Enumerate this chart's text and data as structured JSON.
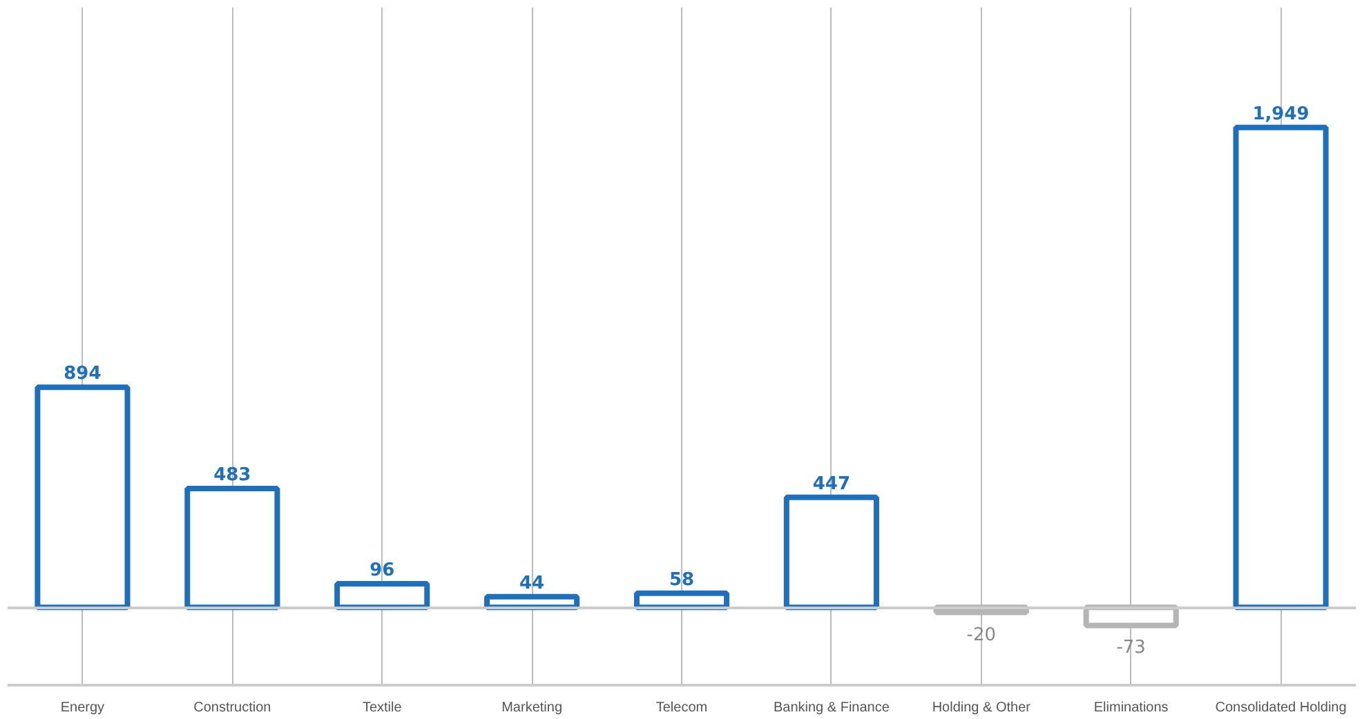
{
  "chart_data": {
    "type": "bar",
    "categories": [
      "Energy",
      "Construction",
      "Textile",
      "Marketing",
      "Telecom",
      "Banking & Finance",
      "Holding & Other",
      "Eliminations",
      "Consolidated Holding"
    ],
    "values": [
      894,
      483,
      96,
      44,
      58,
      447,
      -20,
      -73,
      1949
    ],
    "colors": [
      "#1f6fba",
      "#1f6fba",
      "#1f6fba",
      "#1f6fba",
      "#1f6fba",
      "#1f6fba",
      "#b5b5b5",
      "#b5b5b5",
      "#1f6fba"
    ],
    "value_labels": [
      "894",
      "483",
      "96",
      "44",
      "58",
      "447",
      "-20",
      "-73",
      "1,949"
    ],
    "grid": "x",
    "tick_labels": "x"
  }
}
